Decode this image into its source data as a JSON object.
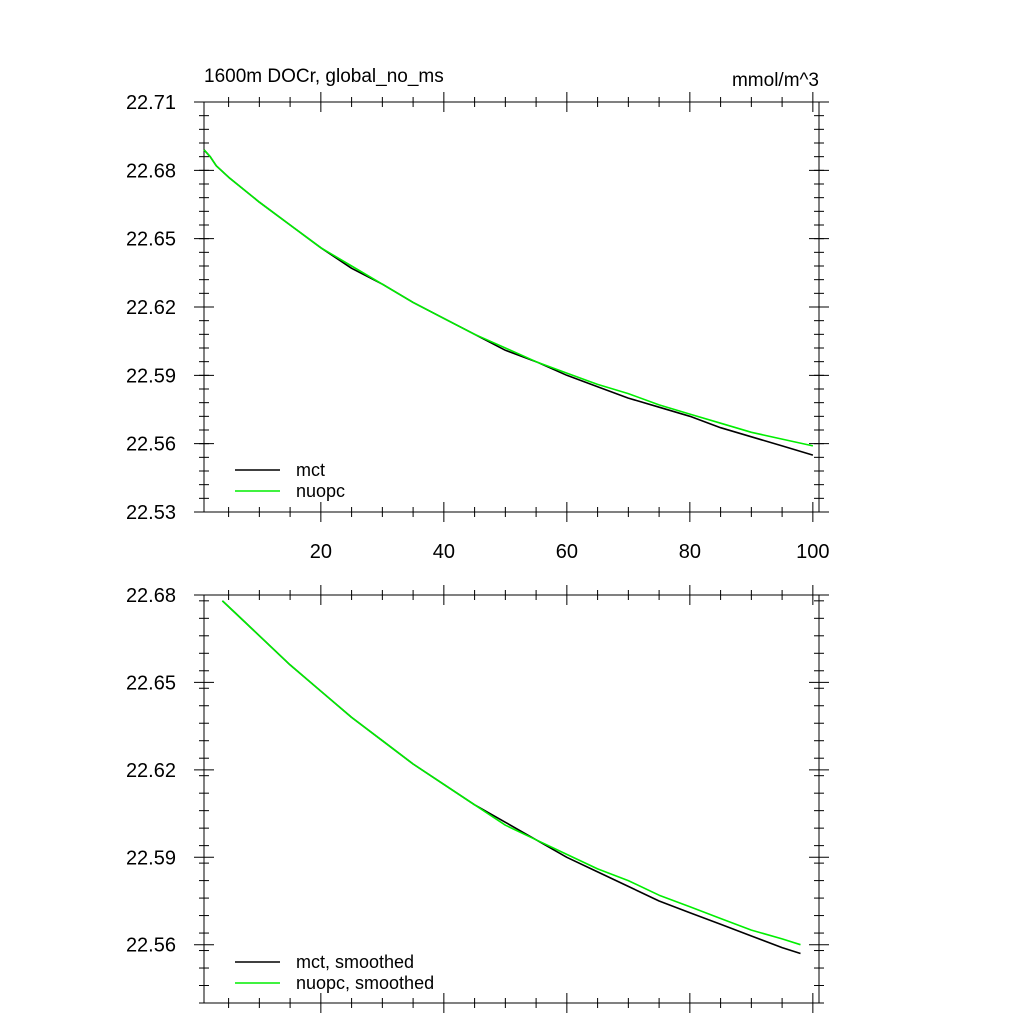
{
  "chart_data": [
    {
      "type": "line",
      "title": "1600m DOCr, global_no_ms",
      "units": "mmol/m^3",
      "xlim": [
        1,
        101
      ],
      "ylim": [
        22.53,
        22.71
      ],
      "xticks": [
        20,
        40,
        60,
        80,
        100
      ],
      "xtick_labels": [
        "20",
        "40",
        "60",
        "80",
        "100"
      ],
      "yticks": [
        22.53,
        22.56,
        22.59,
        22.62,
        22.65,
        22.68,
        22.71
      ],
      "ytick_labels": [
        "22.53",
        "22.56",
        "22.59",
        "22.62",
        "22.65",
        "22.68",
        "22.71"
      ],
      "legend_position": "bottom-left",
      "series": [
        {
          "name": "mct",
          "color": "#000000",
          "x": [
            1,
            2,
            3,
            5,
            10,
            15,
            20,
            25,
            30,
            35,
            40,
            45,
            50,
            55,
            60,
            65,
            70,
            75,
            80,
            85,
            90,
            95,
            100
          ],
          "y": [
            22.689,
            22.686,
            22.682,
            22.677,
            22.666,
            22.656,
            22.646,
            22.637,
            22.63,
            22.622,
            22.615,
            22.608,
            22.601,
            22.596,
            22.59,
            22.585,
            22.58,
            22.576,
            22.572,
            22.567,
            22.563,
            22.559,
            22.555
          ]
        },
        {
          "name": "nuopc",
          "color": "#00ee00",
          "x": [
            1,
            2,
            3,
            5,
            10,
            15,
            20,
            25,
            30,
            35,
            40,
            45,
            50,
            55,
            60,
            65,
            70,
            75,
            80,
            85,
            90,
            95,
            100
          ],
          "y": [
            22.689,
            22.686,
            22.682,
            22.677,
            22.666,
            22.656,
            22.646,
            22.638,
            22.63,
            22.622,
            22.615,
            22.608,
            22.602,
            22.596,
            22.591,
            22.586,
            22.582,
            22.577,
            22.573,
            22.569,
            22.565,
            22.562,
            22.559
          ]
        }
      ]
    },
    {
      "type": "line",
      "xlim": [
        1,
        101
      ],
      "ylim": [
        22.54,
        22.68
      ],
      "xticks": [
        20,
        40,
        60,
        80,
        100
      ],
      "yticks": [
        22.56,
        22.59,
        22.62,
        22.65,
        22.68
      ],
      "ytick_labels": [
        "22.56",
        "22.59",
        "22.62",
        "22.65",
        "22.68"
      ],
      "legend_position": "bottom-left",
      "series": [
        {
          "name": "mct, smoothed",
          "color": "#000000",
          "x": [
            4,
            6,
            10,
            15,
            20,
            25,
            30,
            35,
            40,
            45,
            50,
            55,
            60,
            65,
            70,
            75,
            80,
            85,
            90,
            95,
            98
          ],
          "y": [
            22.678,
            22.674,
            22.666,
            22.656,
            22.647,
            22.638,
            22.63,
            22.622,
            22.615,
            22.608,
            22.602,
            22.596,
            22.59,
            22.585,
            22.58,
            22.575,
            22.571,
            22.567,
            22.563,
            22.559,
            22.557
          ]
        },
        {
          "name": "nuopc, smoothed",
          "color": "#00ee00",
          "x": [
            4,
            6,
            10,
            15,
            20,
            25,
            30,
            35,
            40,
            45,
            50,
            55,
            60,
            65,
            70,
            75,
            80,
            85,
            90,
            95,
            98
          ],
          "y": [
            22.678,
            22.674,
            22.666,
            22.656,
            22.647,
            22.638,
            22.63,
            22.622,
            22.615,
            22.608,
            22.601,
            22.596,
            22.591,
            22.586,
            22.582,
            22.577,
            22.573,
            22.569,
            22.565,
            22.562,
            22.56
          ]
        }
      ]
    }
  ]
}
